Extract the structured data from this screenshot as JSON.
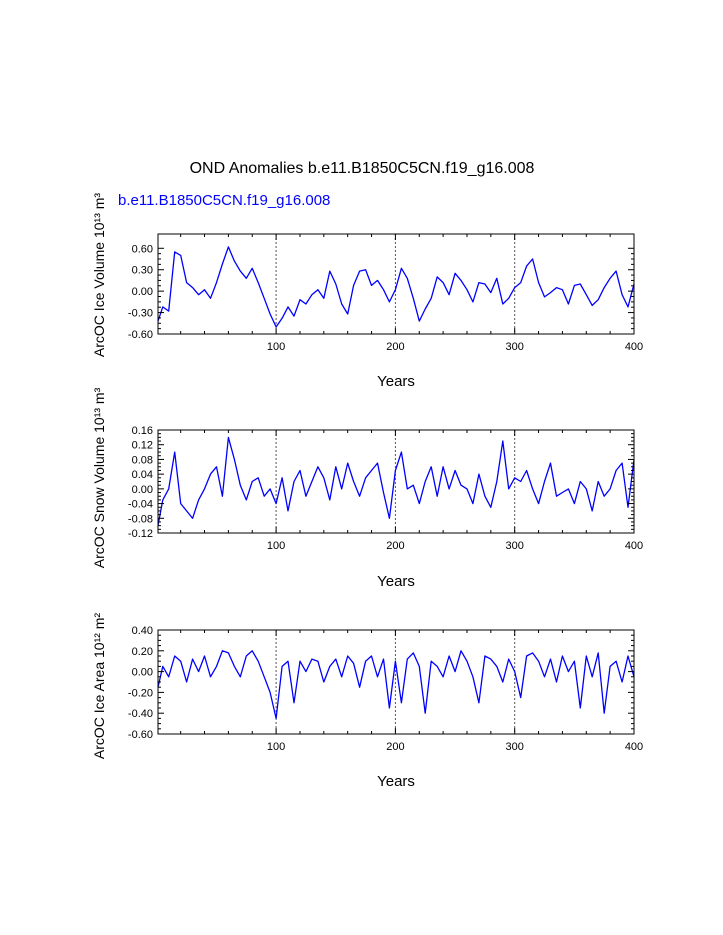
{
  "title": "OND Anomalies b.e11.B1850C5CN.f19_g16.008",
  "subtitle": "b.e11.B1850C5CN.f19_g16.008",
  "colors": {
    "series": "#0000ff",
    "axis": "#000000",
    "reference_lines": "#555555"
  },
  "chart_data": [
    {
      "type": "line",
      "title": "",
      "xlabel": "Years",
      "ylabel": "ArcOC Ice Volume 10¹³ m³",
      "xlim": [
        1,
        400
      ],
      "ylim": [
        -0.6,
        0.8
      ],
      "xticks": [
        100,
        200,
        300,
        400
      ],
      "xtick_labels": [
        "100",
        "200",
        "300",
        "400"
      ],
      "yticks": [
        -0.6,
        -0.3,
        0.0,
        0.3,
        0.6
      ],
      "ytick_labels": [
        "-0.60",
        "-0.30",
        "0.00",
        "0.30",
        "0.60"
      ],
      "reference_lines_x": [
        100,
        200,
        300
      ],
      "series": [
        {
          "name": "b.e11.B1850C5CN.f19_g16.008",
          "x": [
            1,
            5,
            10,
            15,
            20,
            25,
            30,
            35,
            40,
            45,
            50,
            55,
            60,
            65,
            70,
            75,
            80,
            85,
            90,
            95,
            100,
            105,
            110,
            115,
            120,
            125,
            130,
            135,
            140,
            145,
            150,
            155,
            160,
            165,
            170,
            175,
            180,
            185,
            190,
            195,
            200,
            205,
            210,
            215,
            220,
            225,
            230,
            235,
            240,
            245,
            250,
            255,
            260,
            265,
            270,
            275,
            280,
            285,
            290,
            295,
            300,
            305,
            310,
            315,
            320,
            325,
            330,
            335,
            340,
            345,
            350,
            355,
            360,
            365,
            370,
            375,
            380,
            385,
            390,
            395,
            400
          ],
          "values": [
            -0.42,
            -0.22,
            -0.28,
            0.55,
            0.5,
            0.12,
            0.05,
            -0.05,
            0.02,
            -0.1,
            0.12,
            0.38,
            0.62,
            0.42,
            0.28,
            0.18,
            0.32,
            0.12,
            -0.1,
            -0.32,
            -0.5,
            -0.38,
            -0.22,
            -0.35,
            -0.12,
            -0.18,
            -0.05,
            0.02,
            -0.1,
            0.28,
            0.1,
            -0.18,
            -0.32,
            0.08,
            0.28,
            0.3,
            0.08,
            0.15,
            0.02,
            -0.15,
            0.02,
            0.32,
            0.18,
            -0.1,
            -0.42,
            -0.25,
            -0.1,
            0.2,
            0.12,
            -0.05,
            0.25,
            0.15,
            0.02,
            -0.15,
            0.12,
            0.1,
            -0.02,
            0.18,
            -0.18,
            -0.1,
            0.05,
            0.12,
            0.35,
            0.45,
            0.12,
            -0.08,
            -0.02,
            0.05,
            0.02,
            -0.18,
            0.08,
            0.1,
            -0.05,
            -0.2,
            -0.12,
            0.05,
            0.18,
            0.28,
            -0.05,
            -0.22,
            0.1
          ]
        }
      ]
    },
    {
      "type": "line",
      "title": "",
      "xlabel": "Years",
      "ylabel": "ArcOC Snow Volume 10¹³ m³",
      "xlim": [
        1,
        400
      ],
      "ylim": [
        -0.12,
        0.16
      ],
      "xticks": [
        100,
        200,
        300,
        400
      ],
      "xtick_labels": [
        "100",
        "200",
        "300",
        "400"
      ],
      "yticks": [
        -0.12,
        -0.08,
        -0.04,
        0.0,
        0.04,
        0.08,
        0.12,
        0.16
      ],
      "ytick_labels": [
        "-0.12",
        "-0.08",
        "-0.04",
        "0.00",
        "0.04",
        "0.08",
        "0.12",
        "0.16"
      ],
      "reference_lines_x": [
        100,
        200,
        300
      ],
      "series": [
        {
          "name": "b.e11.B1850C5CN.f19_g16.008",
          "x": [
            1,
            5,
            10,
            15,
            20,
            25,
            30,
            35,
            40,
            45,
            50,
            55,
            60,
            65,
            70,
            75,
            80,
            85,
            90,
            95,
            100,
            105,
            110,
            115,
            120,
            125,
            130,
            135,
            140,
            145,
            150,
            155,
            160,
            165,
            170,
            175,
            180,
            185,
            190,
            195,
            200,
            205,
            210,
            215,
            220,
            225,
            230,
            235,
            240,
            245,
            250,
            255,
            260,
            265,
            270,
            275,
            280,
            285,
            290,
            295,
            300,
            305,
            310,
            315,
            320,
            325,
            330,
            335,
            340,
            345,
            350,
            355,
            360,
            365,
            370,
            375,
            380,
            385,
            390,
            395,
            400
          ],
          "values": [
            -0.1,
            -0.03,
            0.0,
            0.1,
            -0.04,
            -0.06,
            -0.08,
            -0.03,
            0.0,
            0.04,
            0.06,
            -0.02,
            0.14,
            0.08,
            0.01,
            -0.03,
            0.02,
            0.03,
            -0.02,
            0.0,
            -0.04,
            0.03,
            -0.06,
            0.02,
            0.05,
            -0.02,
            0.02,
            0.06,
            0.03,
            -0.03,
            0.06,
            0.0,
            0.07,
            0.02,
            -0.02,
            0.03,
            0.05,
            0.07,
            -0.01,
            -0.08,
            0.05,
            0.1,
            0.0,
            0.01,
            -0.04,
            0.02,
            0.06,
            -0.02,
            0.06,
            0.0,
            0.05,
            0.01,
            0.0,
            -0.04,
            0.04,
            -0.02,
            -0.05,
            0.02,
            0.13,
            0.0,
            0.03,
            0.02,
            0.05,
            0.0,
            -0.04,
            0.02,
            0.07,
            -0.02,
            -0.01,
            0.0,
            -0.04,
            0.02,
            0.0,
            -0.06,
            0.02,
            -0.02,
            0.0,
            0.05,
            0.07,
            -0.05,
            0.08
          ]
        }
      ]
    },
    {
      "type": "line",
      "title": "",
      "xlabel": "Years",
      "ylabel": "ArcOC Ice Area 10¹² m²",
      "xlim": [
        1,
        400
      ],
      "ylim": [
        -0.6,
        0.4
      ],
      "xticks": [
        100,
        200,
        300,
        400
      ],
      "xtick_labels": [
        "100",
        "200",
        "300",
        "400"
      ],
      "yticks": [
        -0.6,
        -0.4,
        -0.2,
        0.0,
        0.2,
        0.4
      ],
      "ytick_labels": [
        "-0.60",
        "-0.40",
        "-0.20",
        "0.00",
        "0.20",
        "0.40"
      ],
      "reference_lines_x": [
        100,
        200,
        300
      ],
      "series": [
        {
          "name": "b.e11.B1850C5CN.f19_g16.008",
          "x": [
            1,
            5,
            10,
            15,
            20,
            25,
            30,
            35,
            40,
            45,
            50,
            55,
            60,
            65,
            70,
            75,
            80,
            85,
            90,
            95,
            100,
            105,
            110,
            115,
            120,
            125,
            130,
            135,
            140,
            145,
            150,
            155,
            160,
            165,
            170,
            175,
            180,
            185,
            190,
            195,
            200,
            205,
            210,
            215,
            220,
            225,
            230,
            235,
            240,
            245,
            250,
            255,
            260,
            265,
            270,
            275,
            280,
            285,
            290,
            295,
            300,
            305,
            310,
            315,
            320,
            325,
            330,
            335,
            340,
            345,
            350,
            355,
            360,
            365,
            370,
            375,
            380,
            385,
            390,
            395,
            400
          ],
          "values": [
            -0.15,
            0.05,
            -0.05,
            0.15,
            0.1,
            -0.1,
            0.12,
            0.0,
            0.15,
            -0.05,
            0.05,
            0.2,
            0.18,
            0.05,
            -0.05,
            0.15,
            0.2,
            0.1,
            -0.05,
            -0.2,
            -0.45,
            0.05,
            0.1,
            -0.3,
            0.1,
            0.0,
            0.12,
            0.1,
            -0.1,
            0.05,
            0.12,
            -0.05,
            0.15,
            0.08,
            -0.15,
            0.1,
            0.15,
            -0.05,
            0.12,
            -0.35,
            0.1,
            -0.3,
            0.12,
            0.18,
            0.05,
            -0.4,
            0.1,
            0.05,
            -0.05,
            0.15,
            0.0,
            0.2,
            0.1,
            -0.05,
            -0.3,
            0.15,
            0.12,
            0.05,
            -0.1,
            0.12,
            0.0,
            -0.25,
            0.15,
            0.18,
            0.1,
            -0.05,
            0.12,
            -0.1,
            0.15,
            0.0,
            0.1,
            -0.35,
            0.15,
            -0.05,
            0.18,
            -0.4,
            0.05,
            0.1,
            -0.1,
            0.15,
            -0.05
          ]
        }
      ]
    }
  ]
}
